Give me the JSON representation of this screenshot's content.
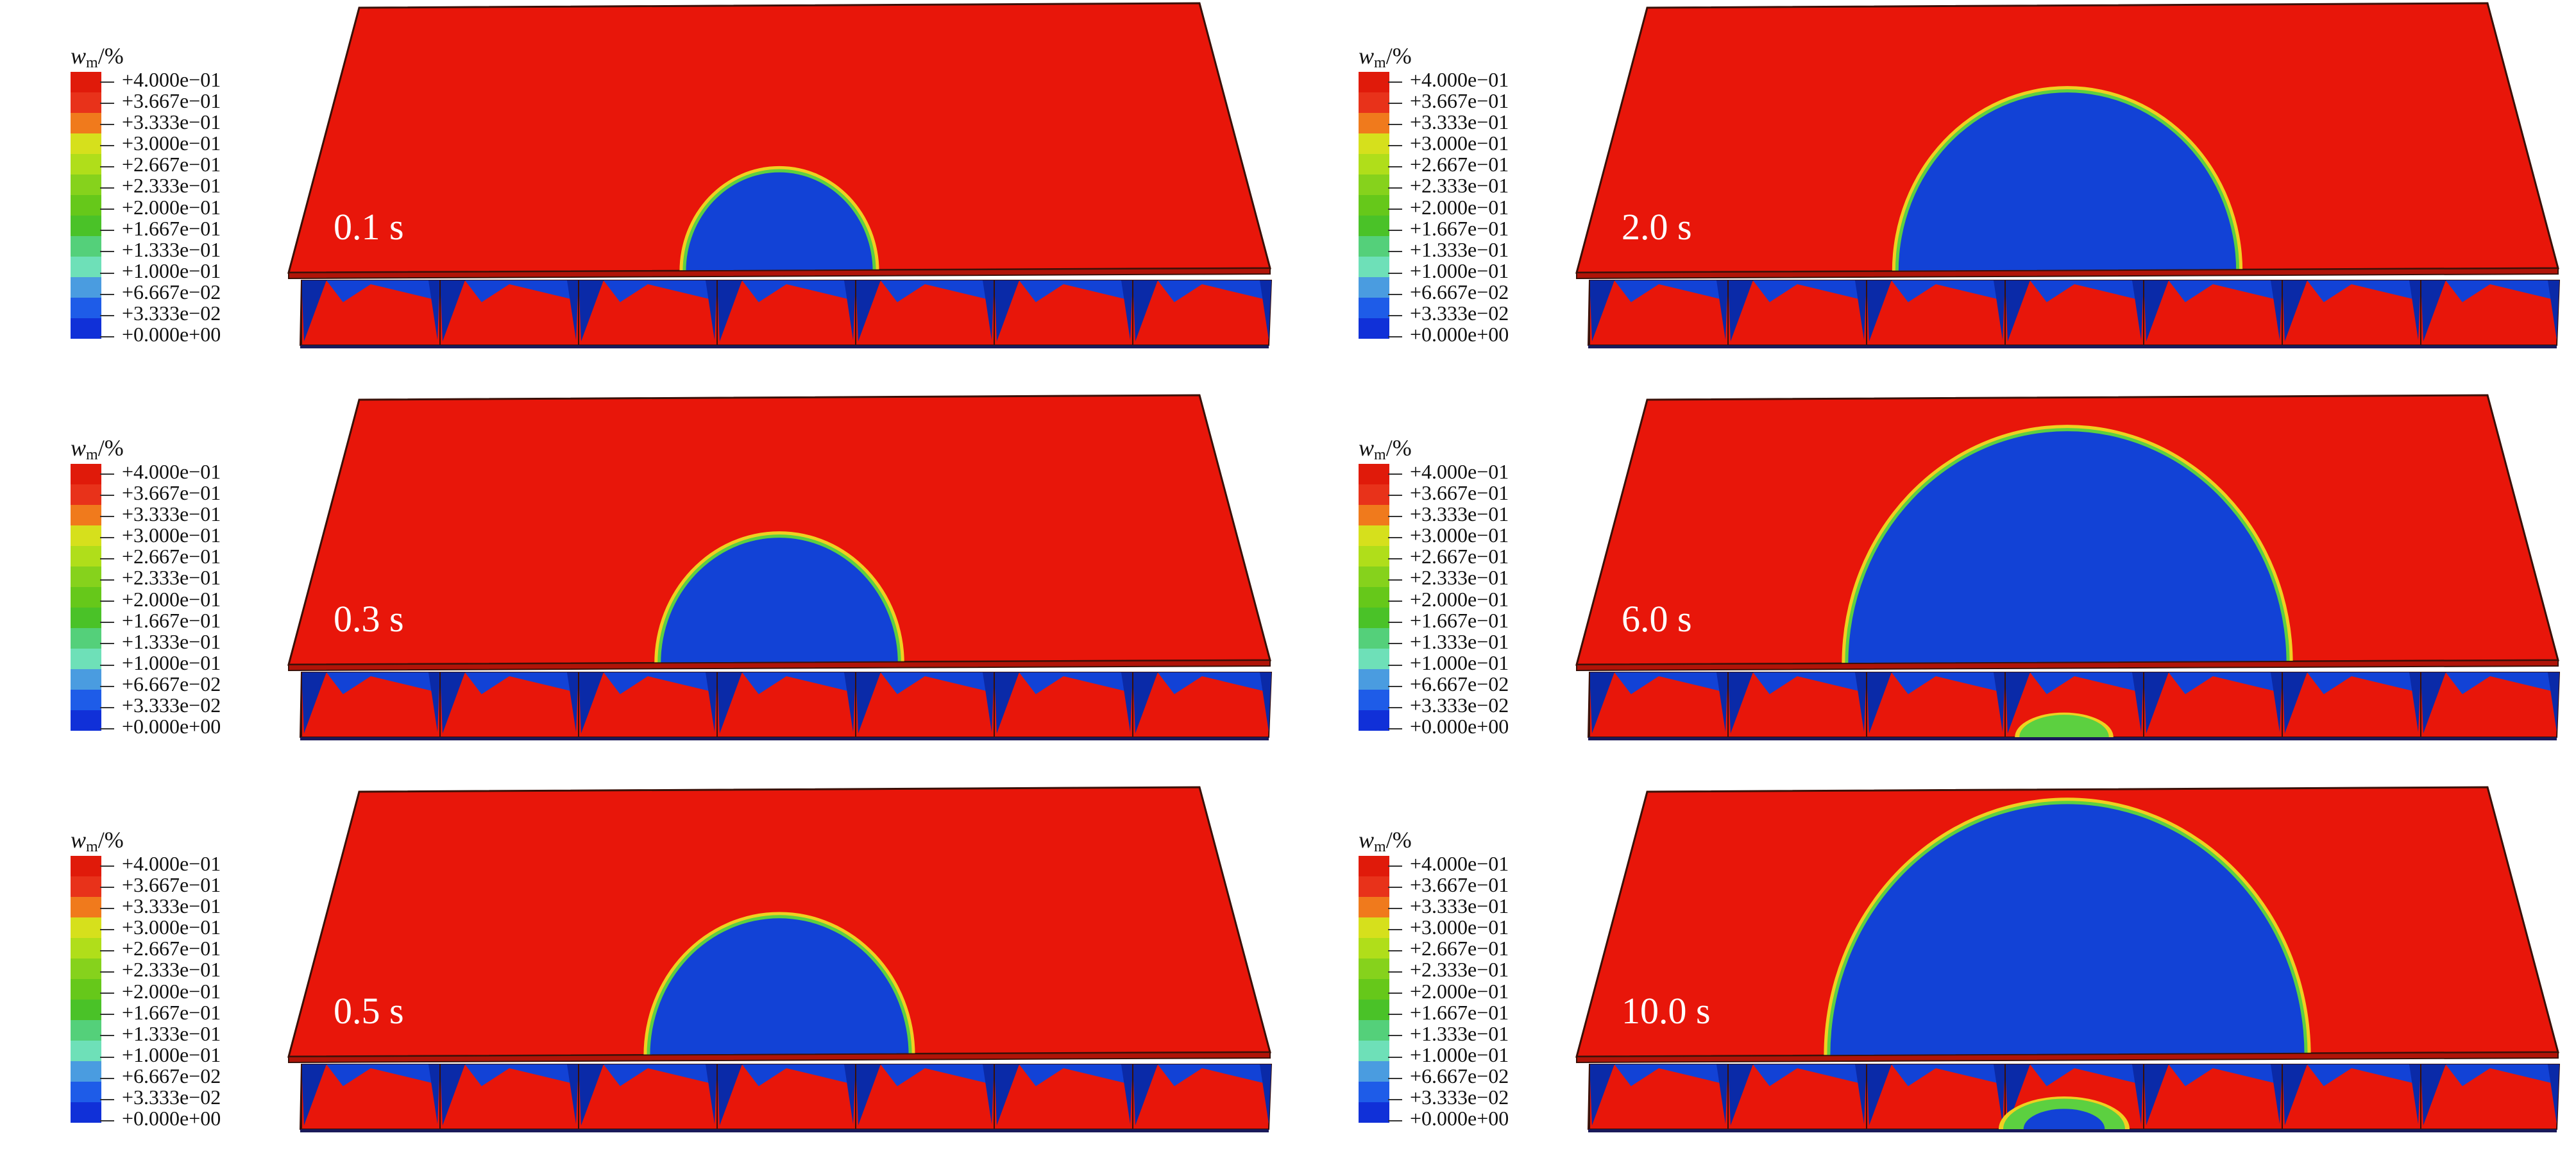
{
  "legend": {
    "title_symbol": "w",
    "title_subscript": "m",
    "title_unit": "/%",
    "levels": [
      {
        "label": "+4.000e−01",
        "color": "#e01a0a"
      },
      {
        "label": "+3.667e−01",
        "color": "#e8321a"
      },
      {
        "label": "+3.333e−01",
        "color": "#f07a1c"
      },
      {
        "label": "+3.000e−01",
        "color": "#d6e01c"
      },
      {
        "label": "+2.667e−01",
        "color": "#b0de1a"
      },
      {
        "label": "+2.333e−01",
        "color": "#86d21c"
      },
      {
        "label": "+2.000e−01",
        "color": "#66c81a"
      },
      {
        "label": "+1.667e−01",
        "color": "#4ac228"
      },
      {
        "label": "+1.333e−01",
        "color": "#54d07a"
      },
      {
        "label": "+1.000e−01",
        "color": "#6ee0b8"
      },
      {
        "label": "+6.667e−02",
        "color": "#4a9ce0"
      },
      {
        "label": "+3.333e−02",
        "color": "#1e5ce8"
      },
      {
        "label": "+0.000e+00",
        "color": "#1030d8"
      }
    ]
  },
  "panels": [
    {
      "time": "0.1 s",
      "top_dome_radius": 0.26,
      "bottom_blob": 0
    },
    {
      "time": "2.0 s",
      "top_dome_radius": 0.47,
      "bottom_blob": 0
    },
    {
      "time": "0.3 s",
      "top_dome_radius": 0.33,
      "bottom_blob": 0
    },
    {
      "time": "6.0 s",
      "top_dome_radius": 0.61,
      "bottom_blob": 0.4
    },
    {
      "time": "0.5 s",
      "top_dome_radius": 0.36,
      "bottom_blob": 0
    },
    {
      "time": "10.0 s",
      "top_dome_radius": 0.66,
      "bottom_blob": 0.75
    }
  ],
  "colors": {
    "dry": "#e8160a",
    "wet": "#1242d6",
    "dark_blue": "#0a2aa8",
    "edge": "#3a1008",
    "front_outer": "#f0d020",
    "front_inner": "#5cd040"
  }
}
